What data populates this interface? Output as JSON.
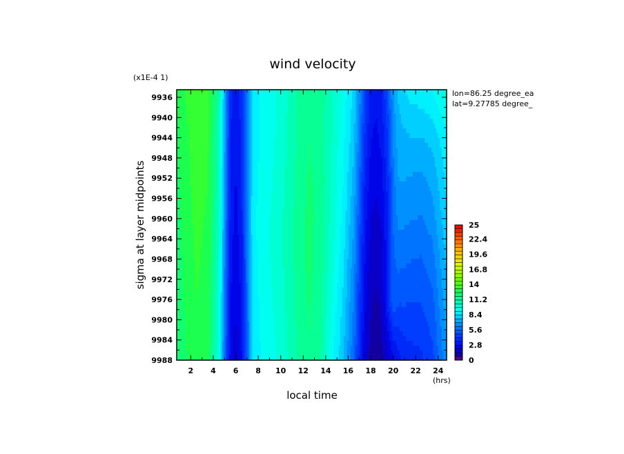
{
  "chart_data": {
    "type": "heatmap",
    "title": "wind velocity",
    "xlabel": "local time",
    "ylabel": "sigma at layer midpoints",
    "x_unit": "(hrs)",
    "y_scale_note": "(x1E-4 1)",
    "annotations": [
      "lon=86.25 degree_ea",
      "lat=9.27785 degree_"
    ],
    "xlim": [
      0.75,
      24.75
    ],
    "ylim": [
      9934.5,
      9988
    ],
    "x_ticks": [
      2,
      4,
      6,
      8,
      10,
      12,
      14,
      16,
      18,
      20,
      22,
      24
    ],
    "x_tick_labels": [
      "2",
      "4",
      "6",
      "8",
      "10",
      "12",
      "14",
      "16",
      "18",
      "20",
      "22",
      "24"
    ],
    "y_ticks": [
      9936,
      9940,
      9944,
      9948,
      9952,
      9956,
      9960,
      9964,
      9968,
      9972,
      9976,
      9980,
      9984,
      9988
    ],
    "y_tick_labels": [
      "9936",
      "9940",
      "9944",
      "9948",
      "9952",
      "9956",
      "9960",
      "9964",
      "9968",
      "9972",
      "9976",
      "9980",
      "9984",
      "9988"
    ],
    "colorbar": {
      "min": 0,
      "max": 25,
      "tick_values": [
        0,
        2.8,
        5.6,
        8.4,
        11.2,
        14,
        16.8,
        19.6,
        22.4,
        25
      ],
      "tick_labels": [
        "0",
        "2.8",
        "5.6",
        "8.4",
        "11.2",
        "14",
        "16.8",
        "19.6",
        "22.4",
        "25"
      ]
    },
    "x": [
      0.75,
      1.5,
      2.5,
      3.5,
      4.5,
      5.0,
      5.5,
      6.0,
      6.5,
      7.0,
      7.5,
      8.5,
      9.5,
      10.5,
      11.5,
      12.5,
      13.5,
      14.5,
      15.5,
      16.5,
      17.0,
      17.5,
      18.0,
      18.5,
      19.0,
      19.5,
      20.0,
      20.5,
      21.0,
      21.5,
      22.5,
      23.5,
      24.75
    ],
    "y": [
      9934.5,
      9944,
      9952,
      9960,
      9968,
      9976,
      9984,
      9988
    ],
    "z_rows": [
      [
        12.5,
        13.2,
        13.8,
        13.4,
        11.0,
        7.5,
        3.8,
        3.0,
        3.8,
        6.0,
        8.6,
        9.3,
        9.7,
        10.3,
        11.2,
        11.8,
        11.5,
        10.5,
        9.5,
        8.2,
        6.5,
        4.5,
        3.2,
        3.0,
        3.5,
        5.0,
        6.8,
        7.8,
        8.2,
        8.6,
        8.8,
        9.0,
        10.0
      ],
      [
        12.4,
        13.0,
        13.6,
        13.3,
        10.8,
        7.2,
        3.6,
        2.8,
        3.6,
        6.0,
        8.6,
        9.3,
        9.7,
        10.4,
        11.2,
        11.8,
        11.5,
        10.4,
        9.3,
        7.8,
        6.0,
        4.0,
        2.8,
        2.6,
        3.0,
        4.2,
        6.4,
        7.4,
        7.5,
        7.6,
        7.6,
        7.9,
        8.8
      ],
      [
        12.3,
        12.9,
        13.5,
        13.2,
        10.6,
        7.0,
        3.5,
        2.7,
        3.5,
        6.0,
        8.7,
        9.4,
        9.8,
        10.5,
        11.3,
        11.9,
        11.6,
        10.3,
        9.1,
        7.4,
        5.5,
        3.5,
        2.4,
        2.2,
        2.6,
        3.8,
        6.0,
        7.0,
        7.0,
        6.9,
        6.8,
        7.2,
        8.5
      ],
      [
        12.2,
        12.8,
        13.4,
        13.1,
        10.4,
        6.8,
        3.3,
        2.5,
        3.3,
        6.0,
        8.8,
        9.5,
        9.9,
        10.6,
        11.4,
        12.0,
        11.6,
        10.2,
        8.9,
        7.0,
        5.0,
        3.0,
        2.1,
        1.9,
        2.2,
        3.4,
        5.6,
        6.5,
        6.4,
        6.3,
        6.2,
        6.6,
        8.2
      ],
      [
        12.0,
        12.7,
        13.3,
        13.0,
        10.2,
        6.5,
        3.1,
        2.3,
        3.1,
        5.8,
        8.7,
        9.5,
        9.9,
        10.6,
        11.4,
        12.0,
        11.5,
        10.0,
        8.6,
        6.6,
        4.6,
        2.7,
        1.8,
        1.6,
        1.8,
        3.4,
        5.4,
        5.8,
        5.7,
        5.6,
        5.5,
        6.0,
        7.8
      ],
      [
        11.9,
        12.6,
        13.2,
        12.9,
        10.0,
        6.2,
        2.9,
        2.1,
        2.9,
        5.6,
        8.6,
        9.4,
        9.8,
        10.5,
        11.3,
        11.9,
        11.4,
        9.7,
        8.3,
        6.2,
        4.2,
        2.4,
        1.5,
        1.3,
        1.6,
        3.6,
        5.6,
        5.0,
        5.0,
        4.9,
        4.9,
        5.4,
        7.4
      ],
      [
        11.8,
        12.5,
        13.1,
        12.8,
        9.8,
        6.0,
        2.7,
        1.9,
        2.7,
        5.4,
        8.5,
        9.3,
        9.7,
        10.4,
        11.2,
        11.8,
        11.3,
        9.4,
        8.0,
        5.8,
        3.8,
        2.1,
        1.3,
        1.1,
        1.4,
        2.2,
        3.4,
        3.8,
        4.1,
        4.2,
        4.3,
        4.9,
        7.0
      ],
      [
        11.7,
        12.4,
        13.0,
        12.7,
        9.7,
        5.9,
        2.6,
        1.8,
        2.6,
        5.3,
        8.4,
        9.2,
        9.6,
        10.3,
        11.1,
        11.7,
        11.2,
        9.2,
        7.8,
        5.6,
        3.6,
        1.9,
        1.2,
        1.0,
        1.2,
        1.8,
        2.6,
        3.2,
        3.6,
        3.8,
        4.0,
        4.6,
        6.8
      ]
    ]
  }
}
